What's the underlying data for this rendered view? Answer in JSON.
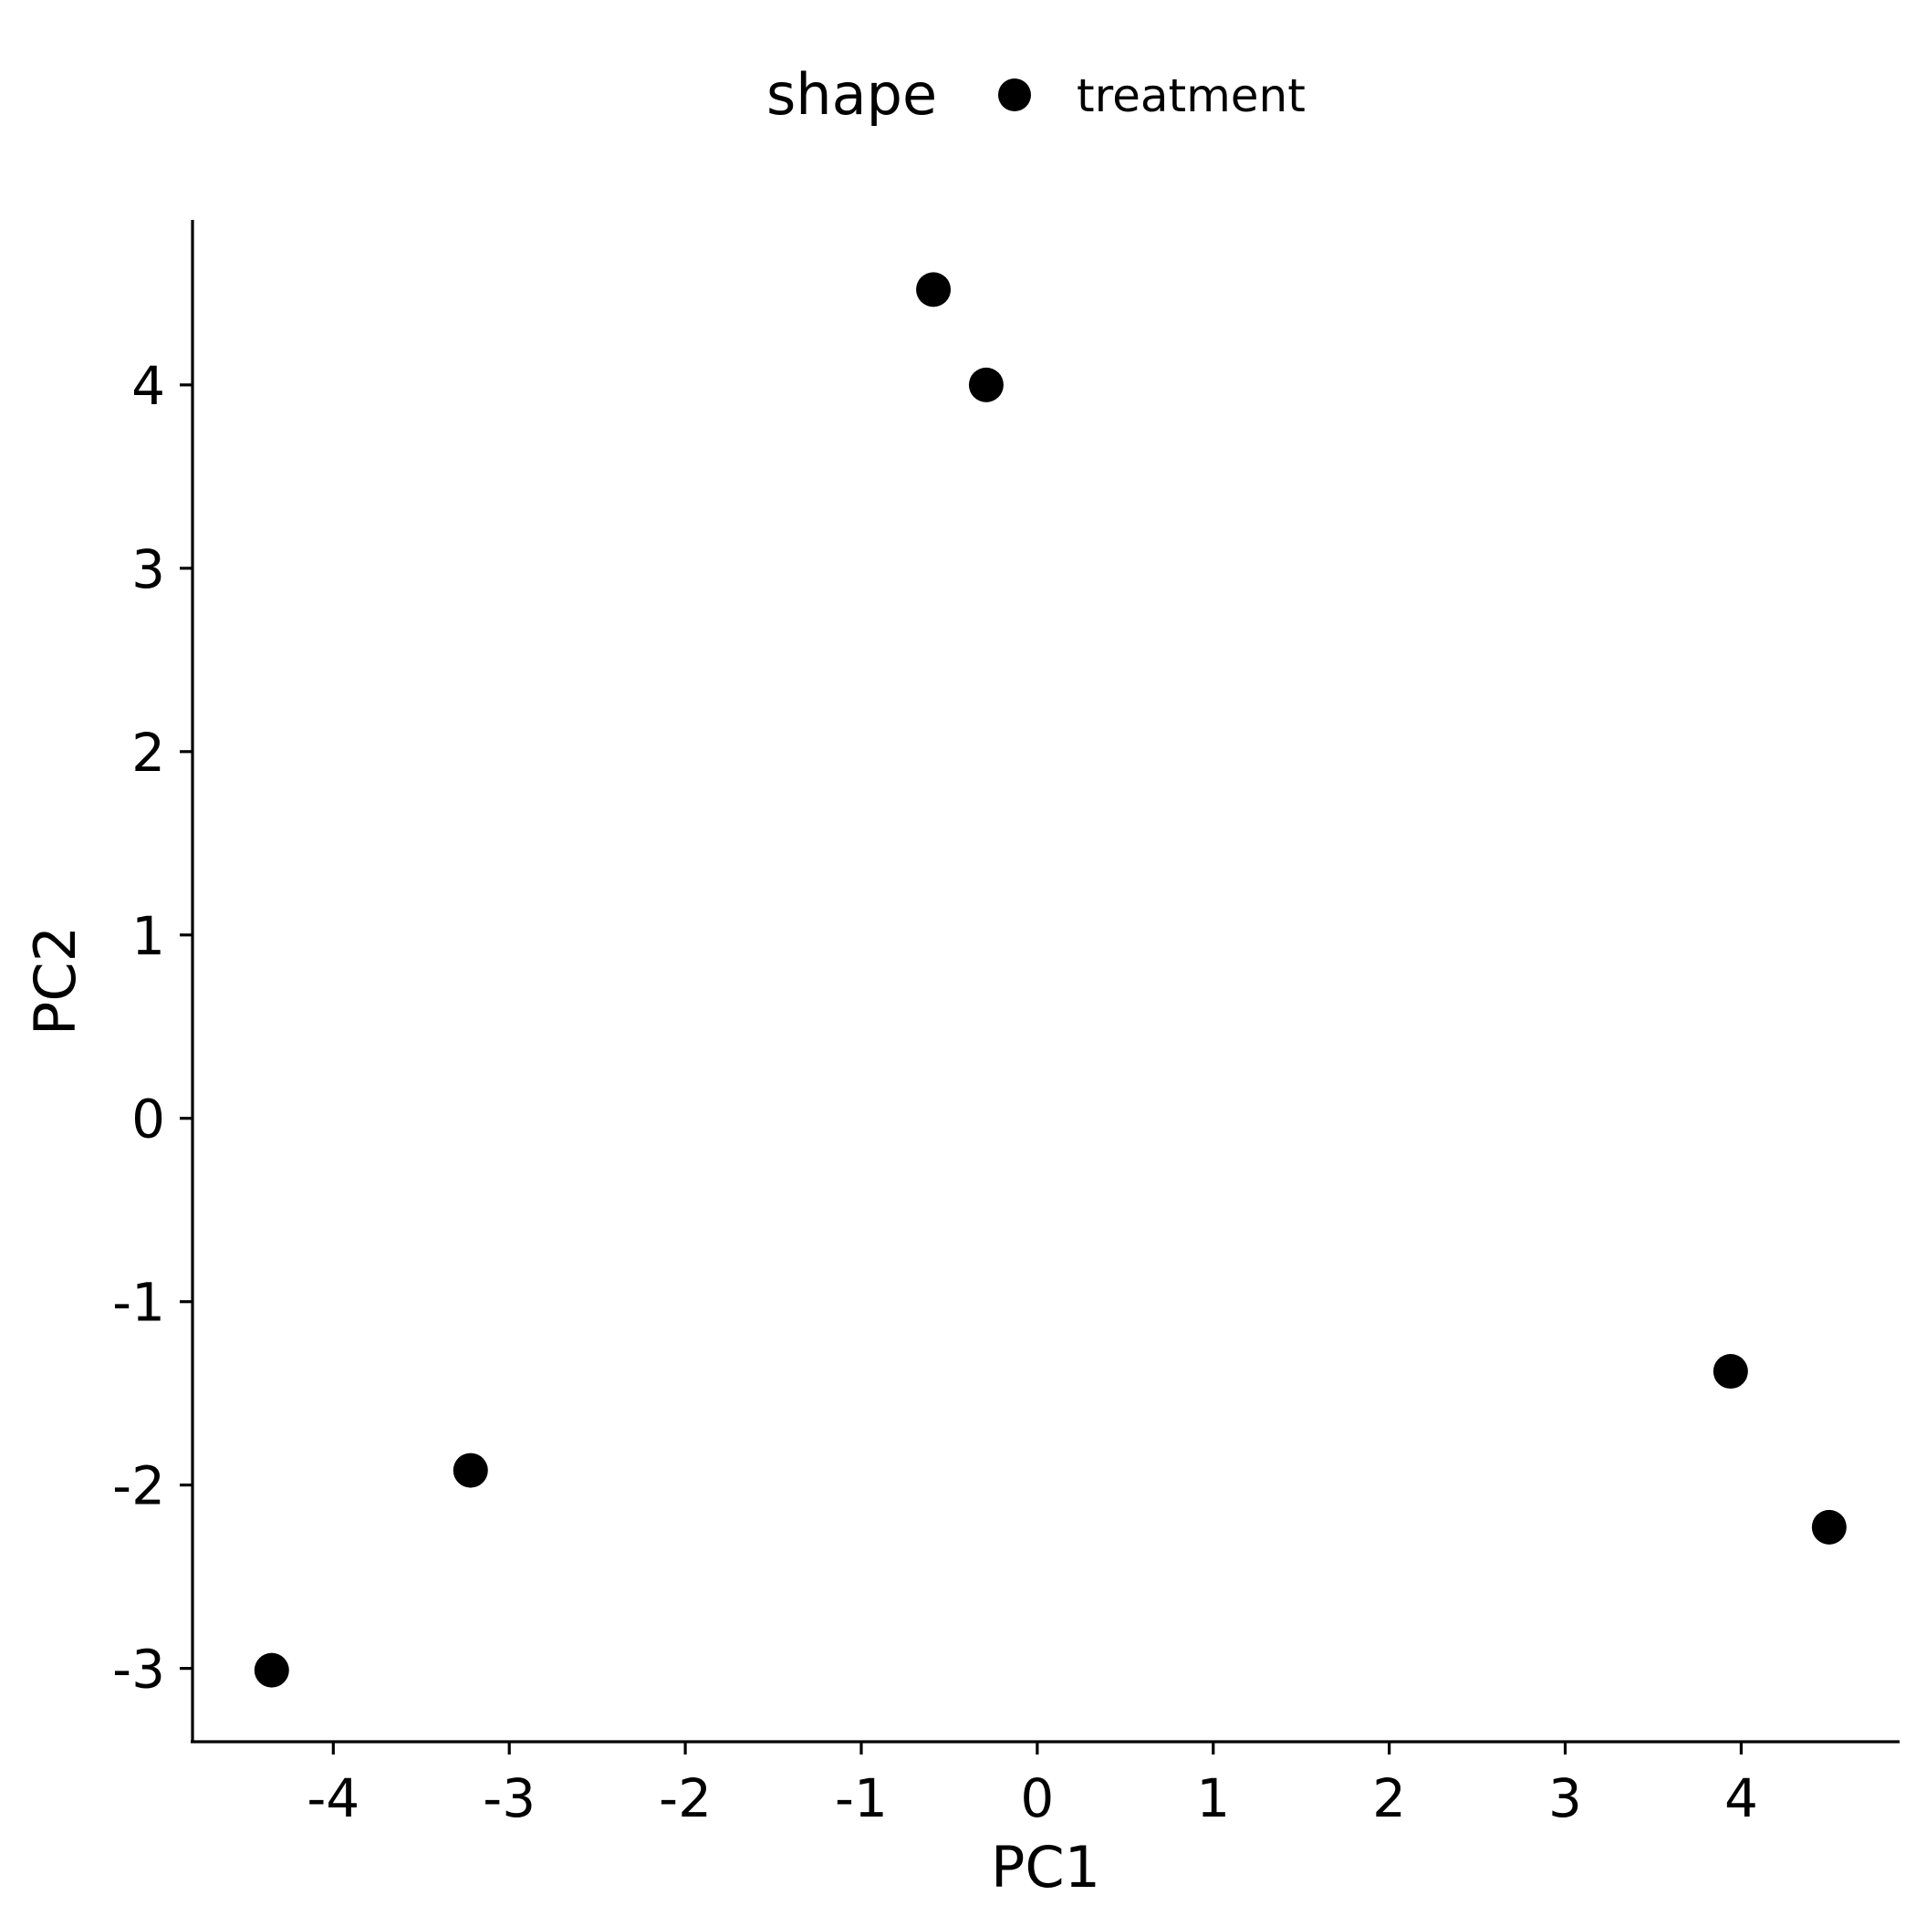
{
  "chart_data": {
    "type": "scatter",
    "title": "",
    "xlabel": "PC1",
    "ylabel": "PC2",
    "xlim": [
      -4.8,
      4.9
    ],
    "ylim": [
      -3.4,
      4.9
    ],
    "x_ticks": [
      -4,
      -3,
      -2,
      -1,
      0,
      1,
      2,
      3,
      4
    ],
    "y_ticks": [
      -3,
      -2,
      -1,
      0,
      1,
      2,
      3,
      4
    ],
    "grid": false,
    "legend": {
      "title": "shape",
      "placement": "top",
      "entries": [
        {
          "label": "treatment",
          "marker": "circle"
        }
      ]
    },
    "series": [
      {
        "name": "treatment",
        "color": "#000000",
        "marker": "circle",
        "x": [
          -4.35,
          -3.22,
          -0.59,
          -0.29,
          3.94,
          4.5
        ],
        "y": [
          -3.01,
          -1.92,
          4.52,
          4.0,
          -1.38,
          -2.23
        ]
      }
    ]
  }
}
